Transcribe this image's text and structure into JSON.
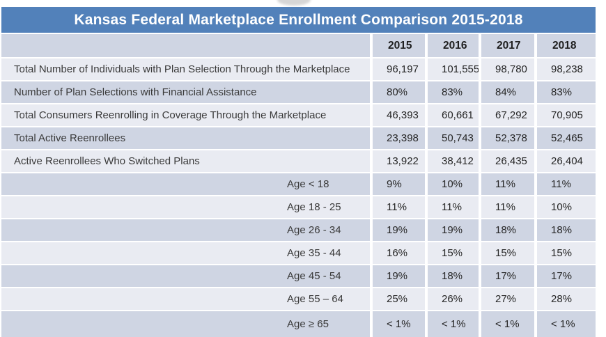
{
  "chart_data": {
    "type": "table",
    "title": "Kansas Federal Marketplace Enrollment Comparison 2015-2018",
    "year_columns": [
      "2015",
      "2016",
      "2017",
      "2018"
    ],
    "rows": [
      {
        "label": "Total Number of Individuals with Plan Selection Through the Marketplace",
        "indent": false,
        "values": [
          "96,197",
          "101,555",
          "98,780",
          "98,238"
        ]
      },
      {
        "label": "Number of Plan Selections with Financial Assistance",
        "indent": false,
        "values": [
          "80%",
          "83%",
          "84%",
          "83%"
        ]
      },
      {
        "label": "Total Consumers Reenrolling in Coverage Through the Marketplace",
        "indent": false,
        "values": [
          "46,393",
          "60,661",
          "67,292",
          "70,905"
        ]
      },
      {
        "label": "Total Active Reenrollees",
        "indent": false,
        "values": [
          "23,398",
          "50,743",
          "52,378",
          "52,465"
        ]
      },
      {
        "label": "Active Reenrollees Who Switched Plans",
        "indent": false,
        "values": [
          "13,922",
          "38,412",
          "26,435",
          "26,404"
        ]
      },
      {
        "label": "Age < 18",
        "indent": true,
        "values": [
          "9%",
          "10%",
          "11%",
          "11%"
        ]
      },
      {
        "label": "Age 18 - 25",
        "indent": true,
        "values": [
          "11%",
          "11%",
          "11%",
          "10%"
        ]
      },
      {
        "label": "Age 26 - 34",
        "indent": true,
        "values": [
          "19%",
          "19%",
          "18%",
          "18%"
        ]
      },
      {
        "label": "Age 35 - 44",
        "indent": true,
        "values": [
          "16%",
          "15%",
          "15%",
          "15%"
        ]
      },
      {
        "label": "Age 45 - 54",
        "indent": true,
        "values": [
          "19%",
          "18%",
          "17%",
          "17%"
        ]
      },
      {
        "label": "Age 55 – 64",
        "indent": true,
        "values": [
          "25%",
          "26%",
          "27%",
          "28%"
        ]
      },
      {
        "label": "Age ≥ 65",
        "indent": true,
        "values": [
          "< 1%",
          "< 1%",
          "< 1%",
          "< 1%"
        ]
      }
    ],
    "layout": {
      "banding": "alternating rows light/dark starting light",
      "grid": "white 2px horizontal and 4px vertical separators",
      "legend_position": "none"
    }
  },
  "colors": {
    "title-bar": "#5281BA",
    "title-text": "#FFFFFF",
    "band-dark": "#CFD5E3",
    "band-light": "#E9EBF2",
    "text-dark": "#262626",
    "text-label": "#3A3A3A"
  }
}
